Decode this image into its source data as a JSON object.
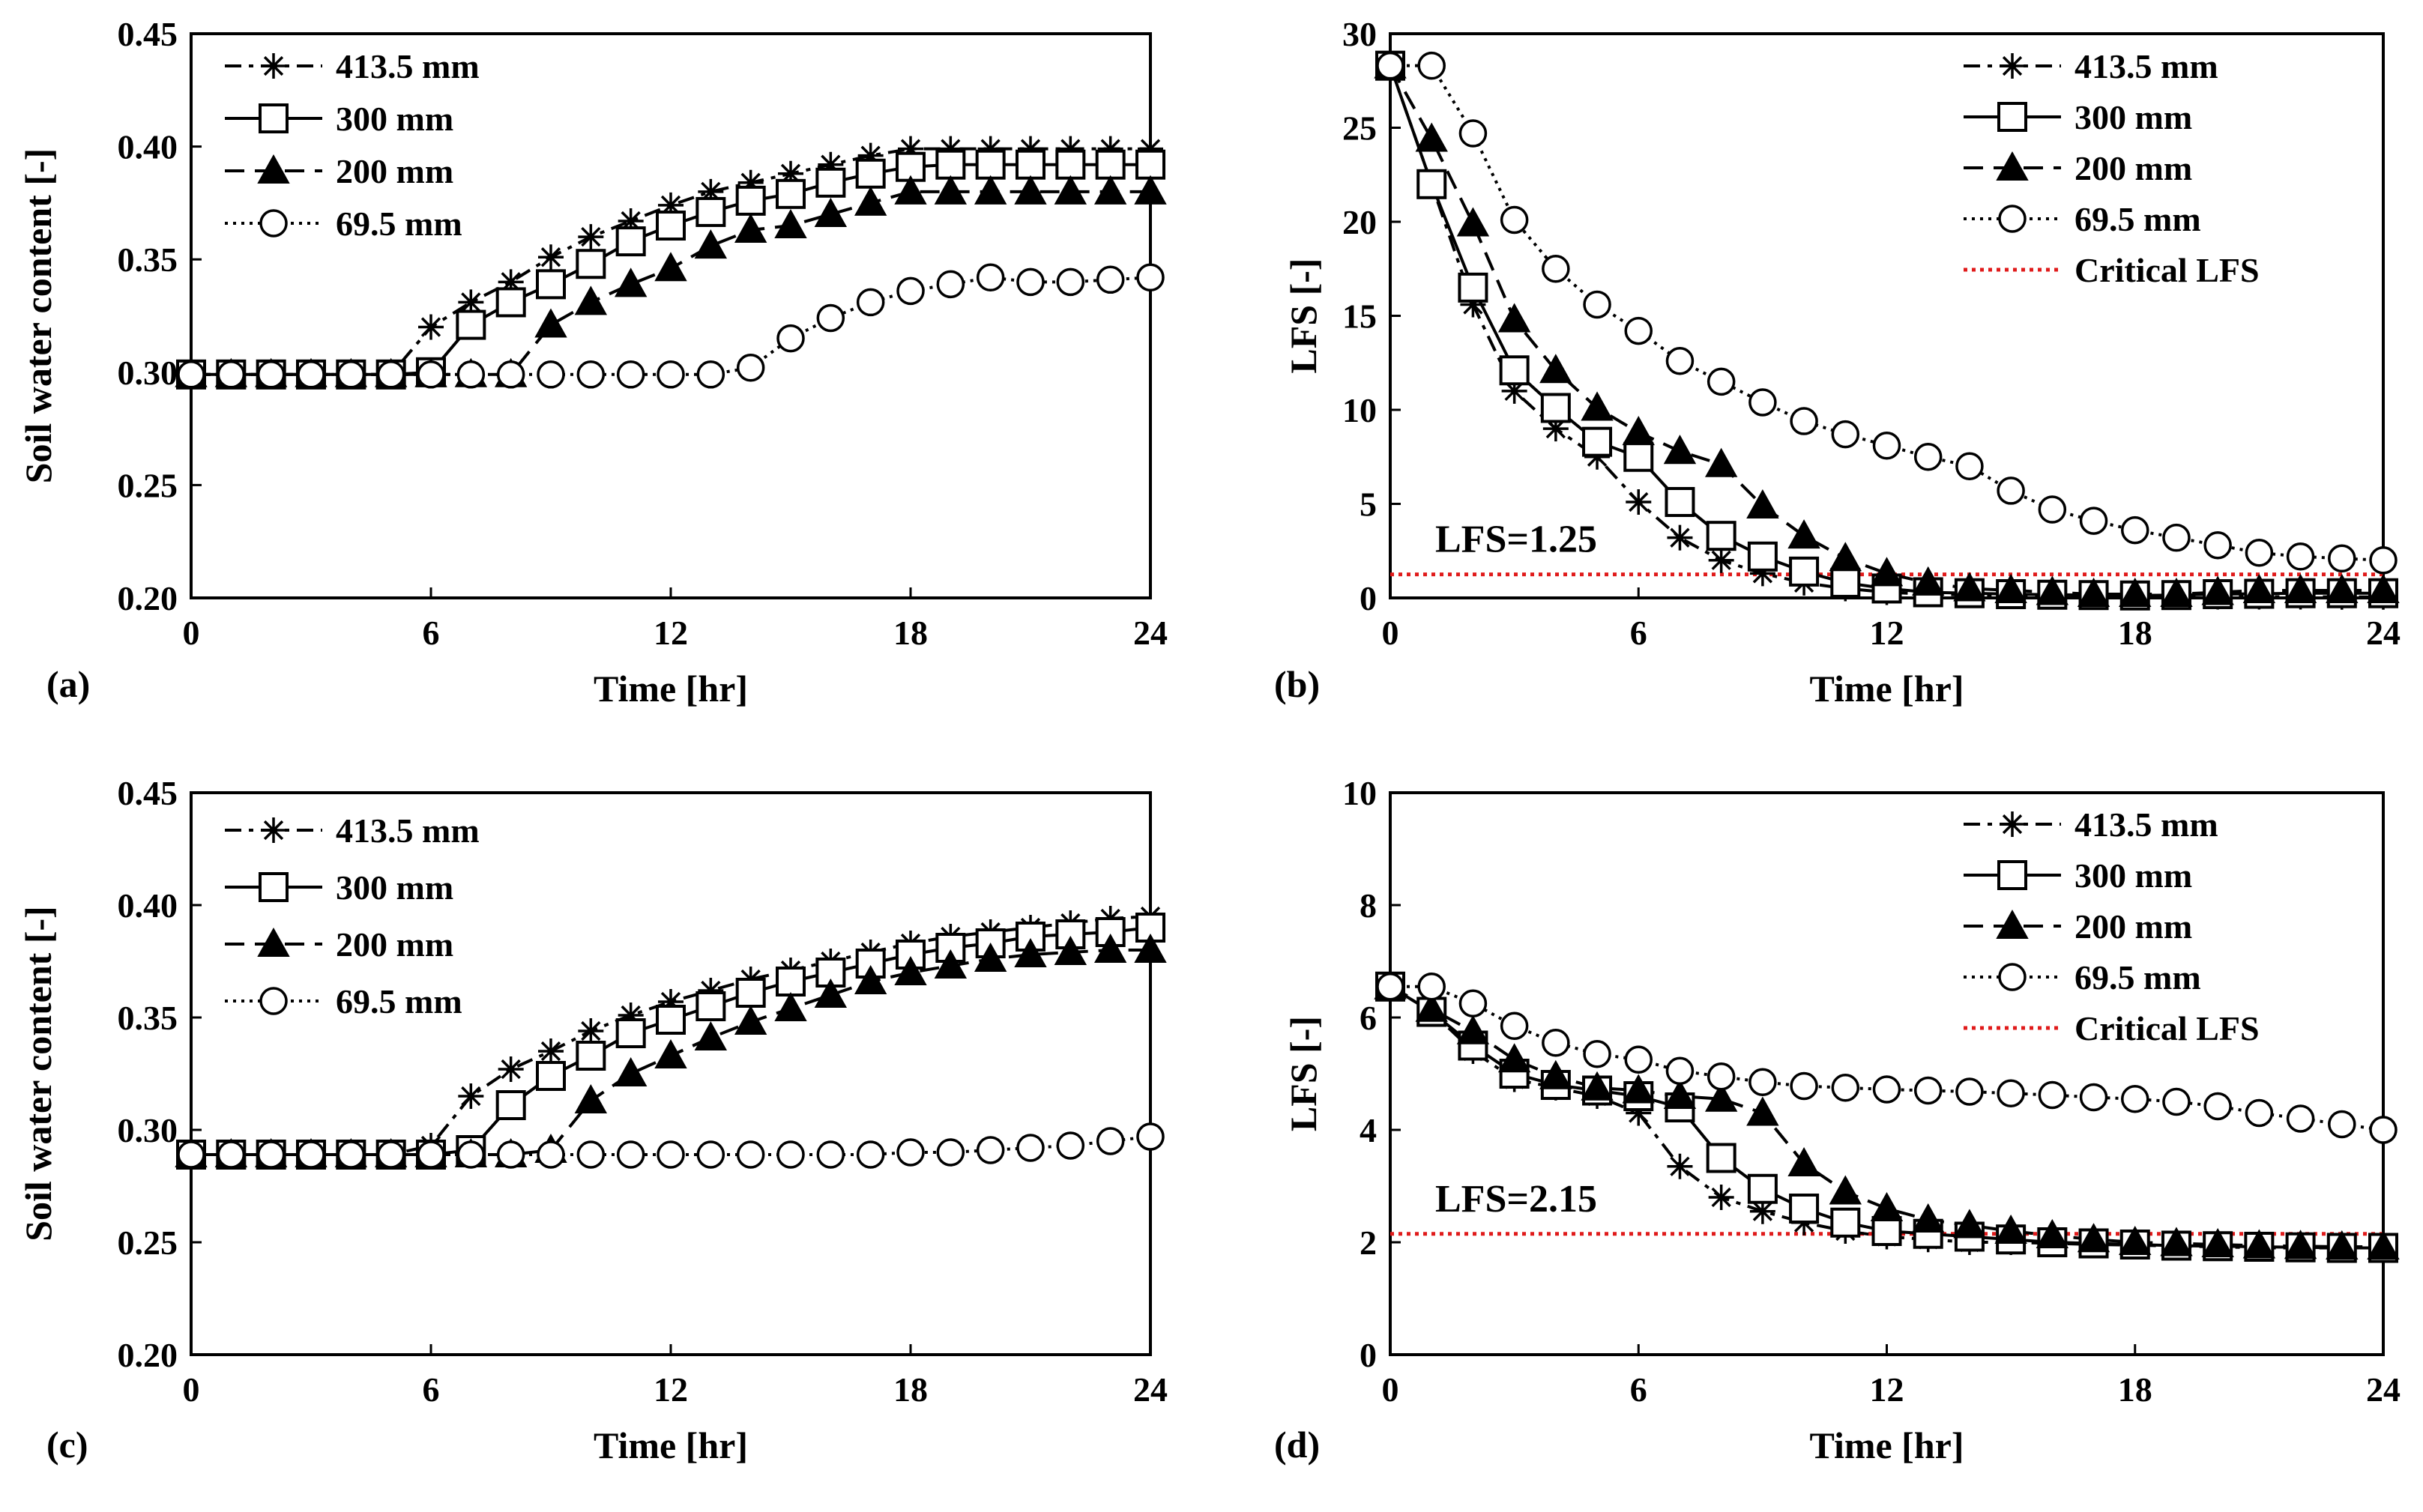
{
  "chart_data": [
    {
      "panel_label": "(a)",
      "type": "line",
      "xlabel": "Time [hr]",
      "ylabel": "Soil water content [-]",
      "xlim": [
        0,
        24
      ],
      "ylim": [
        0.2,
        0.45
      ],
      "xticks": [
        "0",
        "6",
        "12",
        "18",
        "24"
      ],
      "yticks": [
        "0.20",
        "0.25",
        "0.30",
        "0.35",
        "0.40",
        "0.45"
      ],
      "x": [
        0,
        1,
        2,
        3,
        4,
        5,
        6,
        7,
        8,
        9,
        10,
        11,
        12,
        13,
        14,
        15,
        16,
        17,
        18,
        19,
        20,
        21,
        22,
        23,
        24
      ],
      "series": [
        {
          "name": "413.5 mm",
          "marker": "star",
          "dash": "dashdot",
          "values": [
            0.299,
            0.299,
            0.299,
            0.299,
            0.299,
            0.299,
            0.32,
            0.331,
            0.34,
            0.351,
            0.36,
            0.367,
            0.374,
            0.38,
            0.384,
            0.388,
            0.392,
            0.396,
            0.399,
            0.399,
            0.399,
            0.399,
            0.399,
            0.399,
            0.399
          ]
        },
        {
          "name": "300 mm",
          "marker": "square",
          "dash": "solid",
          "values": [
            0.299,
            0.299,
            0.299,
            0.299,
            0.299,
            0.299,
            0.3,
            0.321,
            0.331,
            0.339,
            0.348,
            0.358,
            0.365,
            0.371,
            0.376,
            0.379,
            0.384,
            0.388,
            0.391,
            0.392,
            0.392,
            0.392,
            0.392,
            0.392,
            0.392
          ]
        },
        {
          "name": "200 mm",
          "marker": "triangle",
          "dash": "dashed",
          "values": [
            0.299,
            0.299,
            0.299,
            0.299,
            0.299,
            0.299,
            0.299,
            0.299,
            0.299,
            0.321,
            0.331,
            0.339,
            0.346,
            0.356,
            0.363,
            0.365,
            0.37,
            0.375,
            0.38,
            0.38,
            0.38,
            0.38,
            0.38,
            0.38,
            0.38
          ]
        },
        {
          "name": "69.5 mm",
          "marker": "circle",
          "dash": "dotted",
          "values": [
            0.299,
            0.299,
            0.299,
            0.299,
            0.299,
            0.299,
            0.299,
            0.299,
            0.299,
            0.299,
            0.299,
            0.299,
            0.299,
            0.299,
            0.302,
            0.315,
            0.324,
            0.331,
            0.336,
            0.339,
            0.342,
            0.34,
            0.34,
            0.341,
            0.342
          ]
        }
      ]
    },
    {
      "panel_label": "(b)",
      "type": "line",
      "xlabel": "Time [hr]",
      "ylabel": "LFS [-]",
      "xlim": [
        0,
        24
      ],
      "ylim": [
        0,
        30
      ],
      "xticks": [
        "0",
        "6",
        "12",
        "18",
        "24"
      ],
      "yticks": [
        "0",
        "5",
        "10",
        "15",
        "20",
        "25",
        "30"
      ],
      "x": [
        0,
        1,
        2,
        3,
        4,
        5,
        6,
        7,
        8,
        9,
        10,
        11,
        12,
        13,
        14,
        15,
        16,
        17,
        18,
        19,
        20,
        21,
        22,
        23,
        24
      ],
      "series": [
        {
          "name": "413.5 mm",
          "marker": "star",
          "dash": "dashdot",
          "values": [
            28.3,
            22.0,
            15.6,
            11.0,
            9.0,
            7.5,
            5.1,
            3.2,
            2.0,
            1.3,
            0.8,
            0.5,
            0.3,
            0.2,
            0.15,
            0.12,
            0.1,
            0.08,
            0.07,
            0.07,
            0.06,
            0.06,
            0.06,
            0.05,
            0.05
          ]
        },
        {
          "name": "300 mm",
          "marker": "square",
          "dash": "solid",
          "values": [
            28.3,
            22.0,
            16.5,
            12.1,
            10.1,
            8.3,
            7.5,
            5.1,
            3.3,
            2.2,
            1.4,
            0.8,
            0.5,
            0.3,
            0.25,
            0.2,
            0.17,
            0.15,
            0.13,
            0.15,
            0.2,
            0.22,
            0.25,
            0.25,
            0.25
          ]
        },
        {
          "name": "200 mm",
          "marker": "triangle",
          "dash": "dashed",
          "values": [
            28.3,
            24.4,
            19.9,
            14.8,
            12.1,
            10.1,
            8.8,
            7.8,
            7.1,
            4.9,
            3.3,
            2.1,
            1.3,
            0.8,
            0.5,
            0.4,
            0.3,
            0.2,
            0.2,
            0.2,
            0.3,
            0.4,
            0.4,
            0.4,
            0.4
          ]
        },
        {
          "name": "69.5 mm",
          "marker": "circle",
          "dash": "dotted",
          "values": [
            28.3,
            28.3,
            24.7,
            20.1,
            17.5,
            15.6,
            14.2,
            12.6,
            11.5,
            10.4,
            9.4,
            8.7,
            8.1,
            7.5,
            7.0,
            5.7,
            4.7,
            4.1,
            3.6,
            3.2,
            2.8,
            2.4,
            2.2,
            2.1,
            2.0
          ]
        }
      ],
      "reference_line": {
        "name": "Critical LFS",
        "value": 1.25,
        "color": "#e01b1b"
      },
      "annotation": "LFS=1.25"
    },
    {
      "panel_label": "(c)",
      "type": "line",
      "xlabel": "Time [hr]",
      "ylabel": "Soil water content [-]",
      "xlim": [
        0,
        24
      ],
      "ylim": [
        0.2,
        0.45
      ],
      "xticks": [
        "0",
        "6",
        "12",
        "18",
        "24"
      ],
      "yticks": [
        "0.20",
        "0.25",
        "0.30",
        "0.35",
        "0.40",
        "0.45"
      ],
      "x": [
        0,
        1,
        2,
        3,
        4,
        5,
        6,
        7,
        8,
        9,
        10,
        11,
        12,
        13,
        14,
        15,
        16,
        17,
        18,
        19,
        20,
        21,
        22,
        23,
        24
      ],
      "series": [
        {
          "name": "413.5 mm",
          "marker": "star",
          "dash": "dashdot",
          "values": [
            0.289,
            0.289,
            0.289,
            0.289,
            0.289,
            0.289,
            0.293,
            0.315,
            0.327,
            0.335,
            0.344,
            0.351,
            0.357,
            0.362,
            0.367,
            0.371,
            0.375,
            0.379,
            0.383,
            0.386,
            0.388,
            0.39,
            0.392,
            0.394,
            0.395
          ]
        },
        {
          "name": "300 mm",
          "marker": "square",
          "dash": "solid",
          "values": [
            0.289,
            0.289,
            0.289,
            0.289,
            0.289,
            0.289,
            0.289,
            0.291,
            0.311,
            0.324,
            0.333,
            0.343,
            0.349,
            0.355,
            0.361,
            0.366,
            0.37,
            0.374,
            0.378,
            0.381,
            0.383,
            0.386,
            0.387,
            0.388,
            0.39
          ]
        },
        {
          "name": "200 mm",
          "marker": "triangle",
          "dash": "dashed",
          "values": [
            0.289,
            0.289,
            0.289,
            0.289,
            0.289,
            0.289,
            0.289,
            0.289,
            0.289,
            0.291,
            0.313,
            0.325,
            0.333,
            0.341,
            0.348,
            0.354,
            0.36,
            0.366,
            0.37,
            0.373,
            0.376,
            0.378,
            0.379,
            0.38,
            0.38
          ]
        },
        {
          "name": "69.5 mm",
          "marker": "circle",
          "dash": "dotted",
          "values": [
            0.289,
            0.289,
            0.289,
            0.289,
            0.289,
            0.289,
            0.289,
            0.289,
            0.289,
            0.289,
            0.289,
            0.289,
            0.289,
            0.289,
            0.289,
            0.289,
            0.289,
            0.289,
            0.29,
            0.29,
            0.291,
            0.292,
            0.293,
            0.295,
            0.297
          ]
        }
      ]
    },
    {
      "panel_label": "(d)",
      "type": "line",
      "xlabel": "Time [hr]",
      "ylabel": "LFS [-]",
      "xlim": [
        0,
        24
      ],
      "ylim": [
        0,
        10
      ],
      "xticks": [
        "0",
        "6",
        "12",
        "18",
        "24"
      ],
      "yticks": [
        "0",
        "2",
        "4",
        "6",
        "8",
        "10"
      ],
      "x": [
        0,
        1,
        2,
        3,
        4,
        5,
        6,
        7,
        8,
        9,
        10,
        11,
        12,
        13,
        14,
        15,
        16,
        17,
        18,
        19,
        20,
        21,
        22,
        23,
        24
      ],
      "series": [
        {
          "name": "413.5 mm",
          "marker": "star",
          "dash": "dashdot",
          "values": [
            6.55,
            6.1,
            5.4,
            4.9,
            4.75,
            4.6,
            4.3,
            3.35,
            2.8,
            2.55,
            2.35,
            2.2,
            2.1,
            2.05,
            2.0,
            2.0,
            1.98,
            1.96,
            1.95,
            1.93,
            1.92,
            1.9,
            1.9,
            1.9,
            1.9
          ]
        },
        {
          "name": "300 mm",
          "marker": "square",
          "dash": "solid",
          "values": [
            6.55,
            6.1,
            5.5,
            5.0,
            4.8,
            4.7,
            4.6,
            4.4,
            3.5,
            2.95,
            2.6,
            2.35,
            2.2,
            2.15,
            2.1,
            2.05,
            2.0,
            1.98,
            1.96,
            1.94,
            1.93,
            1.92,
            1.91,
            1.9,
            1.9
          ]
        },
        {
          "name": "200 mm",
          "marker": "triangle",
          "dash": "dashed",
          "values": [
            6.55,
            6.15,
            5.75,
            5.25,
            4.95,
            4.75,
            4.7,
            4.6,
            4.55,
            4.3,
            3.4,
            2.9,
            2.6,
            2.4,
            2.3,
            2.2,
            2.12,
            2.05,
            2.0,
            1.98,
            1.96,
            1.94,
            1.93,
            1.92,
            1.92
          ]
        },
        {
          "name": "69.5 mm",
          "marker": "circle",
          "dash": "dotted",
          "values": [
            6.55,
            6.55,
            6.25,
            5.85,
            5.55,
            5.35,
            5.25,
            5.05,
            4.95,
            4.85,
            4.78,
            4.75,
            4.72,
            4.7,
            4.68,
            4.65,
            4.62,
            4.58,
            4.55,
            4.5,
            4.42,
            4.3,
            4.2,
            4.1,
            4.0
          ]
        }
      ],
      "reference_line": {
        "name": "Critical LFS",
        "value": 2.15,
        "color": "#e01b1b"
      },
      "annotation": "LFS=2.15"
    }
  ]
}
